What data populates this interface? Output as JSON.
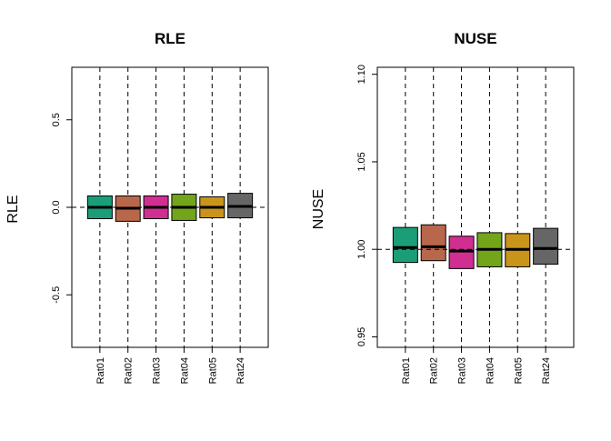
{
  "chart_data": [
    {
      "type": "boxplot",
      "title": "RLE",
      "ylabel": "RLE",
      "xlabel": "",
      "ylim": [
        -0.8,
        0.8
      ],
      "yticks": [
        -0.5,
        0.0,
        0.5
      ],
      "ytick_labels": [
        "-0.5",
        "0.0",
        "0.5"
      ],
      "reference_line": 0.0,
      "categories": [
        "Rat01",
        "Rat02",
        "Rat03",
        "Rat04",
        "Rat05",
        "Rat24"
      ],
      "boxes": [
        {
          "q1": -0.065,
          "median": 0.0,
          "q3": 0.065,
          "color": "#1B9E77"
        },
        {
          "q1": -0.08,
          "median": -0.005,
          "q3": 0.065,
          "color": "#B8674A"
        },
        {
          "q1": -0.065,
          "median": 0.0,
          "q3": 0.065,
          "color": "#D12E91"
        },
        {
          "q1": -0.075,
          "median": 0.0,
          "q3": 0.075,
          "color": "#73A51A"
        },
        {
          "q1": -0.06,
          "median": 0.0,
          "q3": 0.06,
          "color": "#C8941A"
        },
        {
          "q1": -0.06,
          "median": 0.005,
          "q3": 0.08,
          "color": "#666666"
        }
      ]
    },
    {
      "type": "boxplot",
      "title": "NUSE",
      "ylabel": "NUSE",
      "xlabel": "",
      "ylim": [
        0.944,
        1.104
      ],
      "yticks": [
        0.95,
        1.0,
        1.05,
        1.1
      ],
      "ytick_labels": [
        "0.95",
        "1.00",
        "1.05",
        "1.10"
      ],
      "reference_line": 1.0,
      "categories": [
        "Rat01",
        "Rat02",
        "Rat03",
        "Rat04",
        "Rat05",
        "Rat24"
      ],
      "boxes": [
        {
          "q1": 0.9925,
          "median": 1.001,
          "q3": 1.0125,
          "color": "#1B9E77"
        },
        {
          "q1": 0.9935,
          "median": 1.0015,
          "q3": 1.014,
          "color": "#B8674A"
        },
        {
          "q1": 0.989,
          "median": 0.999,
          "q3": 1.0075,
          "color": "#D12E91"
        },
        {
          "q1": 0.99,
          "median": 1.0,
          "q3": 1.0095,
          "color": "#73A51A"
        },
        {
          "q1": 0.99,
          "median": 1.0,
          "q3": 1.009,
          "color": "#C8941A"
        },
        {
          "q1": 0.9915,
          "median": 1.0005,
          "q3": 1.012,
          "color": "#666666"
        }
      ]
    }
  ]
}
